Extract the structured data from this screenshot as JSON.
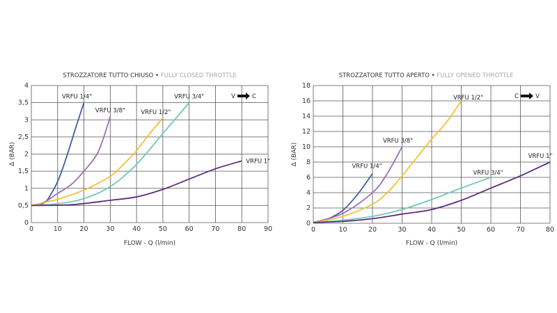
{
  "chart_data": [
    {
      "type": "line",
      "title": "STROZZATORE TUTTO CHIUSO",
      "subtitle": "FULLY CLOSED THROTTLE",
      "xlabel": "FLOW - Q (l/min)",
      "ylabel": "Δ (BAR)",
      "xlim": [
        0,
        90
      ],
      "ylim": [
        0,
        4
      ],
      "xticks": [
        "0",
        "10",
        "20",
        "30",
        "40",
        "50",
        "60",
        "70",
        "80",
        "90"
      ],
      "yticks": [
        "0",
        "0,5",
        "1",
        "1,5",
        "2",
        "2,5",
        "3",
        "3,5",
        "4"
      ],
      "grid": true,
      "direction": {
        "from": "V",
        "to": "C"
      },
      "series": [
        {
          "name": "VRFU 1/4\"",
          "color": "#3d5f9e",
          "x": [
            0,
            5,
            8,
            10,
            12,
            15,
            17,
            20
          ],
          "y": [
            0.5,
            0.58,
            0.9,
            1.2,
            1.6,
            2.3,
            2.8,
            3.5
          ]
        },
        {
          "name": "VRFU 3/8\"",
          "color": "#9b6fba",
          "x": [
            0,
            5,
            10,
            15,
            20,
            25,
            28,
            30
          ],
          "y": [
            0.5,
            0.6,
            0.85,
            1.1,
            1.5,
            2.0,
            2.6,
            3.1
          ]
        },
        {
          "name": "VRFU 1/2\"",
          "color": "#f0c232",
          "x": [
            0,
            10,
            20,
            30,
            35,
            40,
            45,
            50
          ],
          "y": [
            0.5,
            0.68,
            0.95,
            1.35,
            1.7,
            2.1,
            2.6,
            3.05
          ]
        },
        {
          "name": "VRFU 3/4\"",
          "color": "#6ec7b9",
          "x": [
            0,
            10,
            20,
            30,
            40,
            50,
            60
          ],
          "y": [
            0.5,
            0.55,
            0.7,
            1.05,
            1.7,
            2.6,
            3.5
          ]
        },
        {
          "name": "VRFU 1\"",
          "color": "#5e2b7e",
          "x": [
            0,
            15,
            30,
            40,
            50,
            60,
            70,
            80
          ],
          "y": [
            0.5,
            0.52,
            0.65,
            0.75,
            0.97,
            1.27,
            1.57,
            1.8
          ]
        }
      ]
    },
    {
      "type": "line",
      "title": "STROZZATORE TUTTO APERTO",
      "subtitle": "FULLY OPENED THROTTLE",
      "xlabel": "FLOW - Q (l/min)",
      "ylabel": "Δ (BAR)",
      "xlim": [
        0,
        80
      ],
      "ylim": [
        0,
        18
      ],
      "xticks": [
        "0",
        "10",
        "20",
        "30",
        "40",
        "50",
        "60",
        "70",
        "80"
      ],
      "yticks": [
        "0",
        "2",
        "4",
        "6",
        "8",
        "10",
        "12",
        "14",
        "16",
        "18"
      ],
      "grid": true,
      "direction": {
        "from": "C",
        "to": "V"
      },
      "series": [
        {
          "name": "VRFU 1/4\"",
          "color": "#3d5f9e",
          "x": [
            0,
            5,
            10,
            15,
            20
          ],
          "y": [
            0.1,
            0.6,
            1.7,
            3.8,
            6.5
          ]
        },
        {
          "name": "VRFU 3/8\"",
          "color": "#9b6fba",
          "x": [
            0,
            10,
            20,
            25,
            30
          ],
          "y": [
            0.1,
            1.3,
            4,
            6.5,
            10
          ]
        },
        {
          "name": "VRFU 1/2\"",
          "color": "#f0c232",
          "x": [
            0,
            10,
            20,
            25,
            30,
            40,
            45,
            50
          ],
          "y": [
            0.1,
            0.9,
            2.5,
            4,
            6.2,
            11,
            13.2,
            16
          ]
        },
        {
          "name": "VRFU 3/4\"",
          "color": "#6ec7b9",
          "x": [
            0,
            10,
            20,
            30,
            40,
            50,
            60
          ],
          "y": [
            0.1,
            0.4,
            0.9,
            1.8,
            3.1,
            4.6,
            6
          ]
        },
        {
          "name": "VRFU 1\"",
          "color": "#5e2b7e",
          "x": [
            0,
            10,
            20,
            30,
            40,
            50,
            60,
            70,
            80
          ],
          "y": [
            0.1,
            0.25,
            0.6,
            1.2,
            1.8,
            3,
            4.6,
            6.2,
            8
          ]
        }
      ]
    }
  ]
}
